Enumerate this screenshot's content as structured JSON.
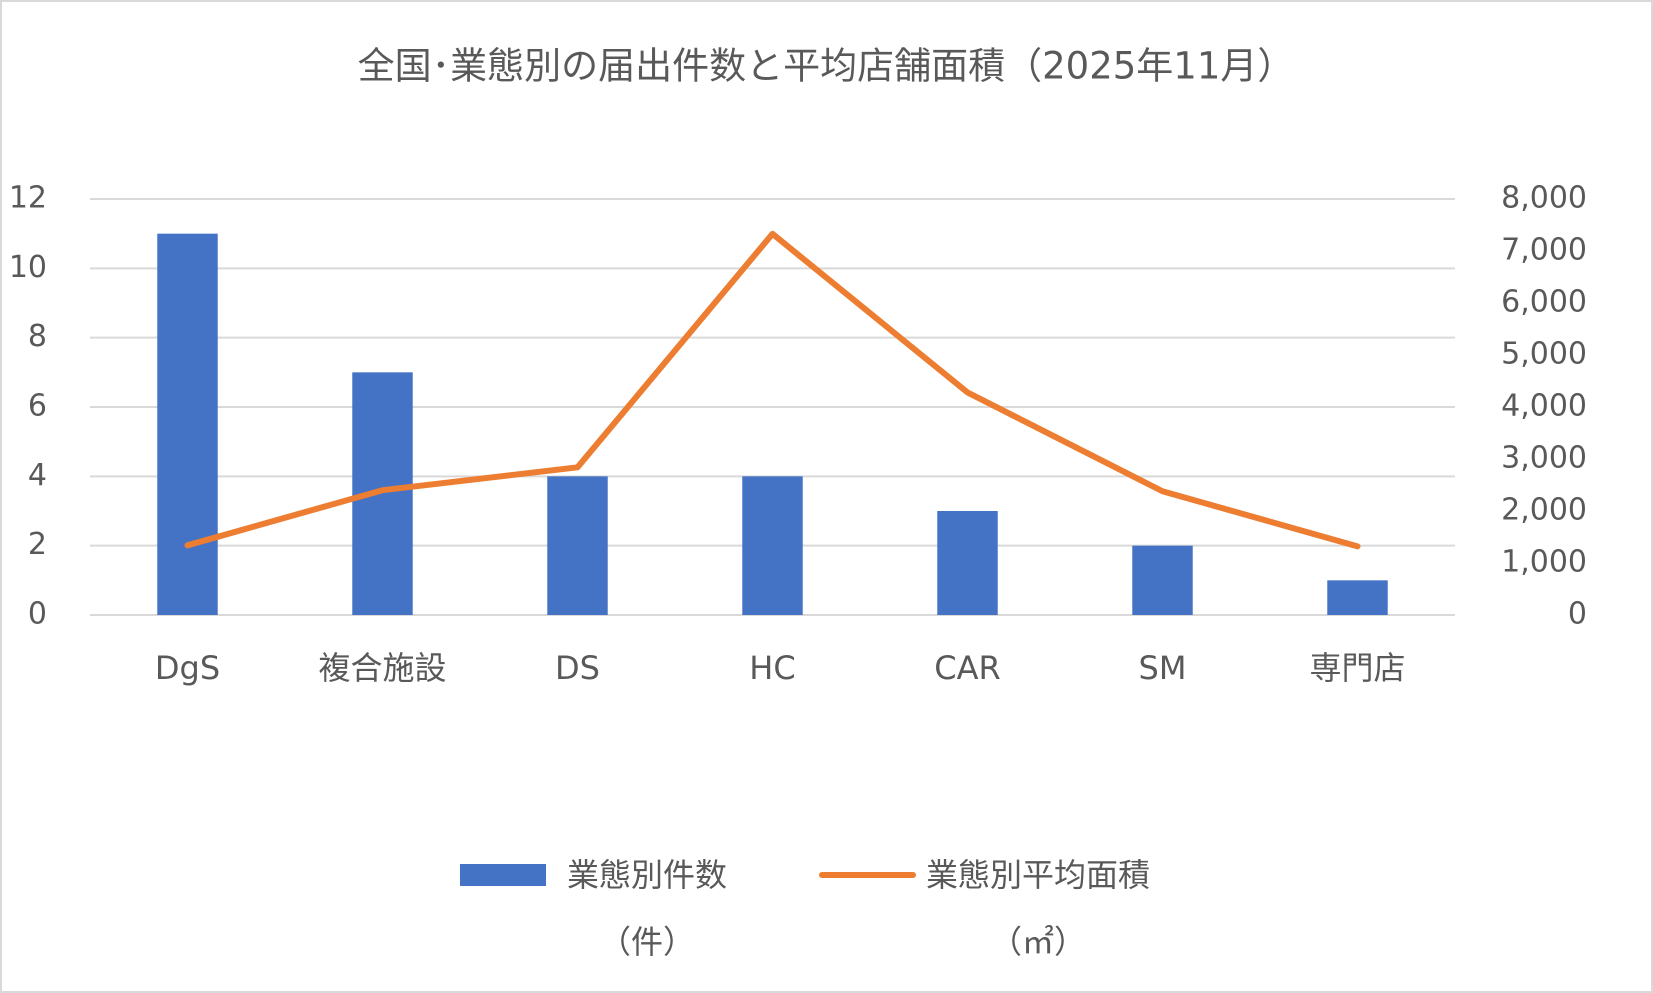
{
  "chart_data": {
    "type": "bar-line",
    "title": "全国･業態別の届出件数と平均店舗面積（2025年11月）",
    "categories": [
      "DgS",
      "複合施設",
      "DS",
      "HC",
      "CAR",
      "SM",
      "専門店"
    ],
    "series": [
      {
        "name": "業態別件数（件）",
        "type": "bar",
        "color": "#4472c4",
        "values": [
          11,
          7,
          4,
          4,
          3,
          2,
          1
        ]
      },
      {
        "name": "業態別平均面積（㎡）",
        "type": "line",
        "axis": "y2",
        "color": "#ed7d31",
        "values": [
          1340,
          2400,
          2840,
          7330,
          4280,
          2380,
          1320
        ]
      }
    ],
    "ylim": [
      0,
      12
    ],
    "yticks": [
      0,
      2,
      4,
      6,
      8,
      10,
      12
    ],
    "y2lim": [
      0,
      8000
    ],
    "y2ticks": [
      0,
      {
        "value": 1000,
        "label": "1,000"
      },
      {
        "value": 2000,
        "label": "2,000"
      },
      {
        "value": 3000,
        "label": "3,000"
      },
      {
        "value": 4000,
        "label": "4,000"
      },
      {
        "value": 5000,
        "label": "5,000"
      },
      {
        "value": 6000,
        "label": "6,000"
      },
      {
        "value": 7000,
        "label": "7,000"
      },
      {
        "value": 8000,
        "label": "8,000"
      }
    ],
    "grid": true,
    "legend": "bottom"
  }
}
